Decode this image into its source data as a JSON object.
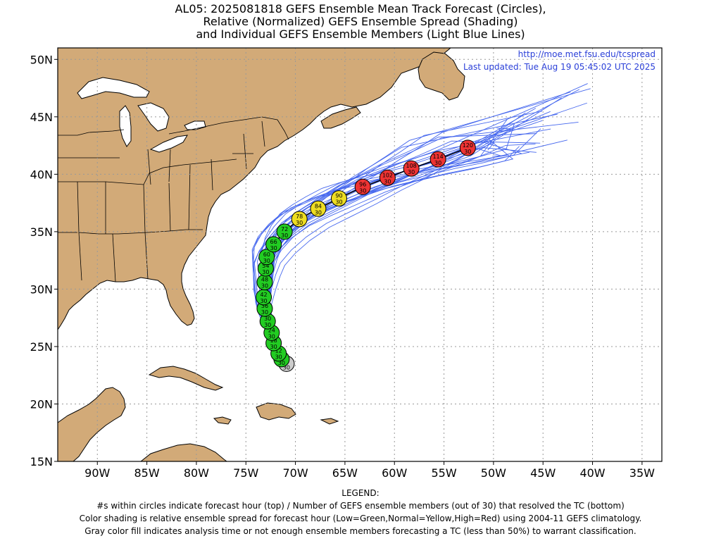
{
  "title": {
    "line1": "AL05: 2025081818 GEFS Ensemble Mean Track Forecast (Circles),",
    "line2": "Relative (Normalized) GEFS Ensemble Spread (Shading)",
    "line3": "and Individual GEFS Ensemble Members (Light Blue Lines)"
  },
  "credit": {
    "url": "http://moe.met.fsu.edu/tcspread",
    "updated": "Last updated: Tue Aug 19 05:45:02 UTC 2025"
  },
  "colors": {
    "land": "#d2aa78",
    "ocean": "#ffffff",
    "member_lines": "#4466ee",
    "spread_low": "#22cc22",
    "spread_normal": "#eedd22",
    "spread_high": "#ee3333",
    "analysis": "#cccccc"
  },
  "axes": {
    "lat_labels": [
      "15N",
      "20N",
      "25N",
      "30N",
      "35N",
      "40N",
      "45N",
      "50N"
    ],
    "lat_values": [
      15,
      20,
      25,
      30,
      35,
      40,
      45,
      50
    ],
    "lon_labels": [
      "90W",
      "85W",
      "80W",
      "75W",
      "70W",
      "65W",
      "60W",
      "55W",
      "50W",
      "45W",
      "40W",
      "35W"
    ],
    "lon_values": [
      -90,
      -85,
      -80,
      -75,
      -70,
      -65,
      -60,
      -55,
      -50,
      -45,
      -40,
      -35
    ],
    "lon_range": [
      -94,
      -33
    ],
    "lat_range": [
      15,
      51
    ]
  },
  "track": [
    {
      "hour": "0",
      "members": "30",
      "lat": 23.5,
      "lon": -70.9,
      "class": "analysis"
    },
    {
      "hour": "6",
      "members": "30",
      "lat": 23.9,
      "lon": -71.4,
      "class": "low"
    },
    {
      "hour": "12",
      "members": "30",
      "lat": 24.4,
      "lon": -71.7,
      "class": "low"
    },
    {
      "hour": "18",
      "members": "30",
      "lat": 25.3,
      "lon": -72.2,
      "class": "low"
    },
    {
      "hour": "24",
      "members": "30",
      "lat": 26.2,
      "lon": -72.4,
      "class": "low"
    },
    {
      "hour": "30",
      "members": "30",
      "lat": 27.2,
      "lon": -72.8,
      "class": "low"
    },
    {
      "hour": "36",
      "members": "30",
      "lat": 28.3,
      "lon": -73.1,
      "class": "low"
    },
    {
      "hour": "42",
      "members": "30",
      "lat": 29.3,
      "lon": -73.2,
      "class": "low"
    },
    {
      "hour": "48",
      "members": "30",
      "lat": 30.6,
      "lon": -73.1,
      "class": "low"
    },
    {
      "hour": "54",
      "members": "30",
      "lat": 31.8,
      "lon": -73.0,
      "class": "low"
    },
    {
      "hour": "60",
      "members": "30",
      "lat": 32.8,
      "lon": -72.9,
      "class": "low"
    },
    {
      "hour": "66",
      "members": "30",
      "lat": 33.9,
      "lon": -72.2,
      "class": "low"
    },
    {
      "hour": "72",
      "members": "30",
      "lat": 35.0,
      "lon": -71.1,
      "class": "low"
    },
    {
      "hour": "78",
      "members": "30",
      "lat": 36.1,
      "lon": -69.6,
      "class": "normal"
    },
    {
      "hour": "84",
      "members": "30",
      "lat": 37.0,
      "lon": -67.7,
      "class": "normal"
    },
    {
      "hour": "90",
      "members": "30",
      "lat": 37.9,
      "lon": -65.6,
      "class": "normal"
    },
    {
      "hour": "96",
      "members": "30",
      "lat": 38.9,
      "lon": -63.2,
      "class": "high"
    },
    {
      "hour": "102",
      "members": "30",
      "lat": 39.7,
      "lon": -60.7,
      "class": "high"
    },
    {
      "hour": "108",
      "members": "30",
      "lat": 40.5,
      "lon": -58.3,
      "class": "high"
    },
    {
      "hour": "114",
      "members": "30",
      "lat": 41.3,
      "lon": -55.6,
      "class": "high"
    },
    {
      "hour": "120",
      "members": "30",
      "lat": 42.3,
      "lon": -52.6,
      "class": "high"
    }
  ],
  "legend": {
    "title": "LEGEND:",
    "line1": "#s within circles indicate forecast hour (top) / Number of GEFS ensemble members (out of 30) that resolved the TC (bottom)",
    "line2": "Color shading is relative ensemble spread for forecast hour (Low=Green,Normal=Yellow,High=Red) using 2004-11 GEFS climatology.",
    "line3": "Gray color fill indicates analysis time or not enough ensemble members forecasting a TC (less than 50%) to warrant classification."
  }
}
